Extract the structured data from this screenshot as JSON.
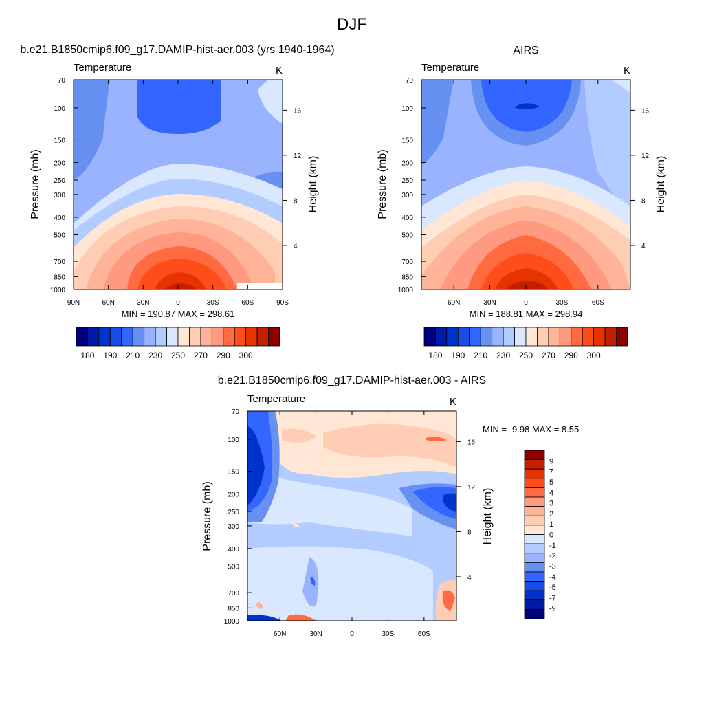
{
  "page_title": "DJF",
  "colors": {
    "abs_scale": [
      "#00007f",
      "#001aa5",
      "#0033cc",
      "#1a4ce6",
      "#3366ff",
      "#6690f2",
      "#99b3ff",
      "#b3ccff",
      "#d9e8ff",
      "#ffe6d5",
      "#ffcdb3",
      "#ffb399",
      "#ff9a80",
      "#ff6a40",
      "#ff4d1a",
      "#e63300",
      "#c42000",
      "#8c0000"
    ],
    "diff_scale": [
      "#00007f",
      "#001aa5",
      "#0033cc",
      "#1a4ce6",
      "#3366ff",
      "#6690f2",
      "#99b3ff",
      "#b3ccff",
      "#d9e8ff",
      "#ffe6d5",
      "#ffcdb3",
      "#ffb399",
      "#ff9a80",
      "#ff6a40",
      "#ff4d1a",
      "#e63300",
      "#c42000",
      "#8c0000"
    ]
  },
  "chart_data": [
    {
      "type": "heatmap",
      "title": "b.e21.B1850cmip6.f09_g17.DAMIP-hist-aer.003 (yrs 1940-1964)",
      "subtitle_left": "Temperature",
      "subtitle_right": "K",
      "xlabel": "",
      "ylabel": "Pressure (mb)",
      "ylabel_right": "Height (km)",
      "x_ticks": [
        "90N",
        "60N",
        "30N",
        "0",
        "30S",
        "60S",
        "90S"
      ],
      "y_ticks": [
        "70",
        "100",
        "150",
        "200",
        "250",
        "300",
        "400",
        "500",
        "700",
        "850",
        "1000"
      ],
      "y_right_ticks": [
        "16",
        "12",
        "8",
        "4"
      ],
      "stats": "MIN = 190.87  MAX = 298.61",
      "min": 190.87,
      "max": 298.61,
      "colorbar_labels": [
        "180",
        "190",
        "210",
        "230",
        "250",
        "270",
        "290",
        "300"
      ],
      "legend_placement": "bottom"
    },
    {
      "type": "heatmap",
      "title": "AIRS",
      "subtitle_left": "Temperature",
      "subtitle_right": "K",
      "xlabel": "",
      "ylabel": "Pressure (mb)",
      "ylabel_right": "Height (km)",
      "x_ticks": [
        "60N",
        "30N",
        "0",
        "30S",
        "60S"
      ],
      "y_ticks": [
        "70",
        "100",
        "150",
        "200",
        "250",
        "300",
        "400",
        "500",
        "700",
        "850",
        "1000"
      ],
      "y_right_ticks": [
        "16",
        "12",
        "8",
        "4"
      ],
      "stats": "MIN = 188.81  MAX = 298.94",
      "min": 188.81,
      "max": 298.94,
      "colorbar_labels": [
        "180",
        "190",
        "210",
        "230",
        "250",
        "270",
        "290",
        "300"
      ],
      "legend_placement": "bottom"
    },
    {
      "type": "heatmap",
      "title": "b.e21.B1850cmip6.f09_g17.DAMIP-hist-aer.003 - AIRS",
      "subtitle_left": "Temperature",
      "subtitle_right": "K",
      "xlabel": "",
      "ylabel": "Pressure (mb)",
      "ylabel_right": "Height (km)",
      "x_ticks": [
        "60N",
        "30N",
        "0",
        "30S",
        "60S"
      ],
      "y_ticks": [
        "70",
        "100",
        "150",
        "200",
        "250",
        "300",
        "400",
        "500",
        "700",
        "850",
        "1000"
      ],
      "y_right_ticks": [
        "16",
        "12",
        "8",
        "4"
      ],
      "stats": "MIN =  -9.98  MAX =   8.55",
      "min": -9.98,
      "max": 8.55,
      "colorbar_labels": [
        "9",
        "7",
        "5",
        "4",
        "3",
        "2",
        "1",
        "0",
        "-1",
        "-2",
        "-3",
        "-4",
        "-5",
        "-7",
        "-9"
      ],
      "legend_placement": "right"
    }
  ]
}
